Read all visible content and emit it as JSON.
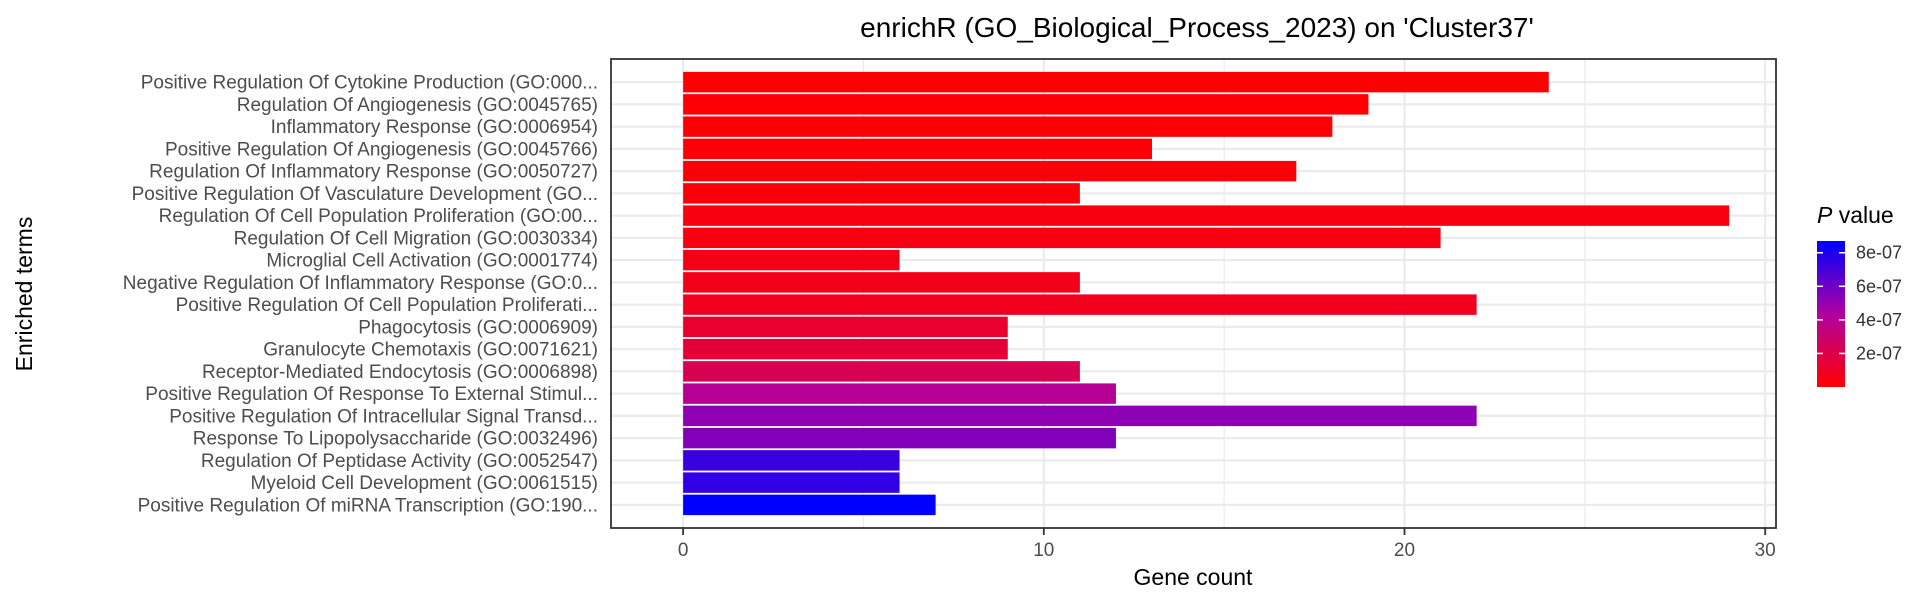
{
  "chart_data": {
    "type": "bar",
    "orientation": "horizontal",
    "title": "enrichR (GO_Biological_Process_2023) on 'Cluster37'",
    "xlabel": "Gene count",
    "ylabel": "Enriched terms",
    "xlim": [
      -2,
      30.3
    ],
    "xticks": [
      0,
      10,
      20,
      30
    ],
    "grid": true,
    "legend": {
      "position": "right",
      "title_italic": "P",
      "title_rest": " value",
      "ticks": [
        {
          "label": "8e-07",
          "value": 8e-07
        },
        {
          "label": "6e-07",
          "value": 6e-07
        },
        {
          "label": "4e-07",
          "value": 4e-07
        },
        {
          "label": "2e-07",
          "value": 2e-07
        }
      ],
      "range": [
        0,
        8.7e-07
      ],
      "color_low": "#ff0000",
      "color_high": "#0000ff"
    },
    "categories": [
      "Positive Regulation Of Cytokine Production (GO:000...",
      "Regulation Of Angiogenesis (GO:0045765)",
      "Inflammatory Response (GO:0006954)",
      "Positive Regulation Of Angiogenesis (GO:0045766)",
      "Regulation Of Inflammatory Response (GO:0050727)",
      "Positive Regulation Of Vasculature Development (GO...",
      "Regulation Of Cell Population Proliferation (GO:00...",
      "Regulation Of Cell Migration (GO:0030334)",
      "Microglial Cell Activation (GO:0001774)",
      "Negative Regulation Of Inflammatory Response (GO:0...",
      "Positive Regulation Of Cell Population Proliferati...",
      "Phagocytosis (GO:0006909)",
      "Granulocyte Chemotaxis (GO:0071621)",
      "Receptor-Mediated Endocytosis (GO:0006898)",
      "Positive Regulation Of Response To External Stimul...",
      "Positive Regulation Of Intracellular Signal Transd...",
      "Response To Lipopolysaccharide (GO:0032496)",
      "Regulation Of Peptidase Activity (GO:0052547)",
      "Myeloid Cell Development (GO:0061515)",
      "Positive Regulation Of miRNA Transcription (GO:190..."
    ],
    "values": [
      24,
      19,
      18,
      13,
      17,
      11,
      29,
      21,
      6,
      11,
      22,
      9,
      9,
      11,
      12,
      22,
      12,
      6,
      6,
      7
    ],
    "p_values": [
      5e-09,
      1e-08,
      1.5e-08,
      2e-08,
      2.5e-08,
      3e-08,
      4e-08,
      5e-08,
      6e-08,
      7e-08,
      8e-08,
      1.2e-07,
      1.5e-07,
      2.2e-07,
      4e-07,
      5.2e-07,
      5.5e-07,
      7.3e-07,
      7.5e-07,
      8.7e-07
    ]
  }
}
